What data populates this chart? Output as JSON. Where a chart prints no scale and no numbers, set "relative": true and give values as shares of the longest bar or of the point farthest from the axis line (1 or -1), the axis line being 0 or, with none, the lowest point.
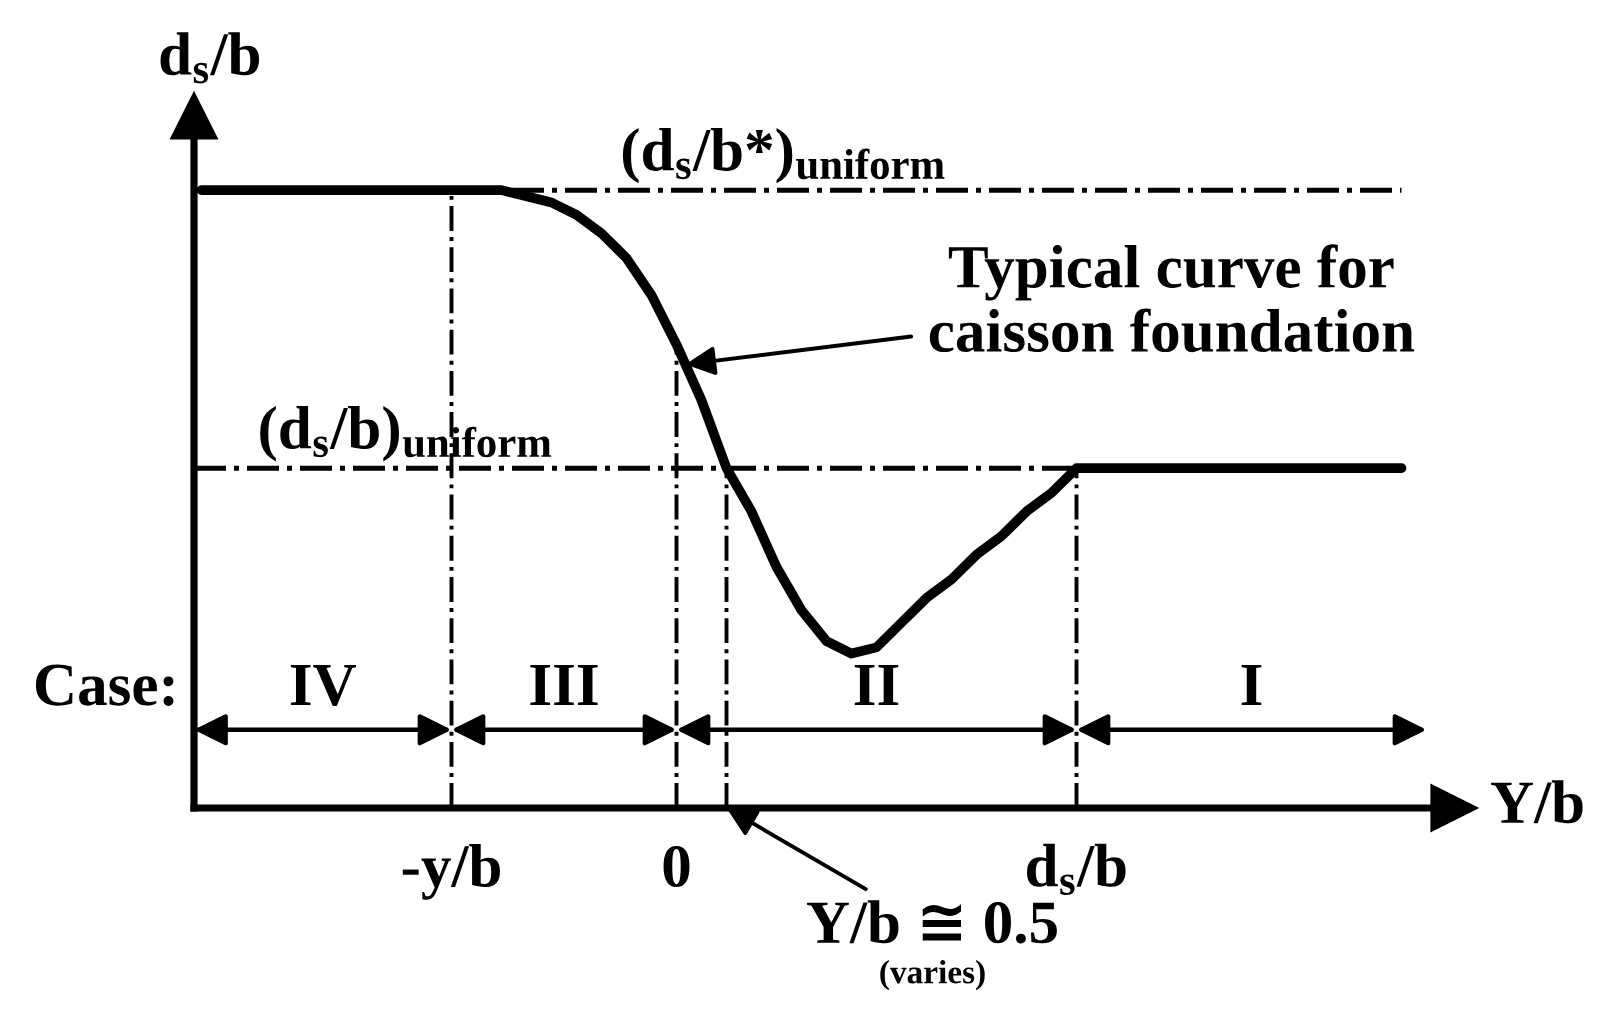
{
  "chart_data": {
    "type": "line",
    "relative": true,
    "xlabel": "Y/b",
    "ylabel": "d$_{s}$/b",
    "categories": [
      null,
      null,
      null,
      null,
      null,
      null,
      null,
      null,
      null,
      null,
      "-y/b",
      null,
      null,
      null,
      null,
      null,
      null,
      null,
      null,
      "0",
      null,
      null,
      null,
      null,
      null,
      null,
      null,
      null,
      null,
      null,
      null,
      null,
      null,
      null,
      null,
      "d$_{s}$/b",
      null,
      null,
      null,
      null,
      null,
      null,
      null,
      null,
      null,
      null,
      null,
      null,
      null,
      null
    ],
    "tick_labels": "x",
    "series": [
      {
        "color": "#000000",
        "values": [
          1,
          1,
          1,
          1,
          1,
          1,
          1,
          1,
          1,
          1,
          1,
          1,
          1,
          0.99,
          0.98,
          0.96,
          0.93,
          0.89,
          0.83,
          0.75,
          0.66,
          0.55,
          0.48,
          0.39,
          0.32,
          0.27,
          0.25,
          0.26,
          0.3,
          0.34,
          0.37,
          0.41,
          0.44,
          0.48,
          0.51,
          0.55,
          0.55,
          0.55,
          0.55,
          0.55,
          0.55,
          0.55,
          0.55,
          0.55,
          0.55,
          0.55,
          0.55,
          0.55,
          0.55,
          null
        ]
      }
    ],
    "ref_lines": [
      {
        "axis": "y",
        "value": 1,
        "label": "(d$_{s}$/b*)$_{uniform}$",
        "line_style": "dashdot"
      },
      {
        "axis": "y",
        "value": 0.55,
        "label": "(d$_{s}$/b)$_{uniform}$",
        "line_style": "dashdot"
      },
      {
        "axis": "x",
        "value": "-y/b",
        "line_style": "dashdot"
      },
      {
        "axis": "x",
        "value": "0",
        "line_style": "dashdot"
      },
      {
        "axis": "x",
        "value": "d$_{s}$/b",
        "line_style": "dashdot"
      }
    ],
    "annotations": [
      "Typical curve for\ncaisson foundation",
      "Y/b ≅ 0.5\n(varies)",
      "Case:",
      "IV",
      "III",
      "II",
      "I"
    ]
  }
}
